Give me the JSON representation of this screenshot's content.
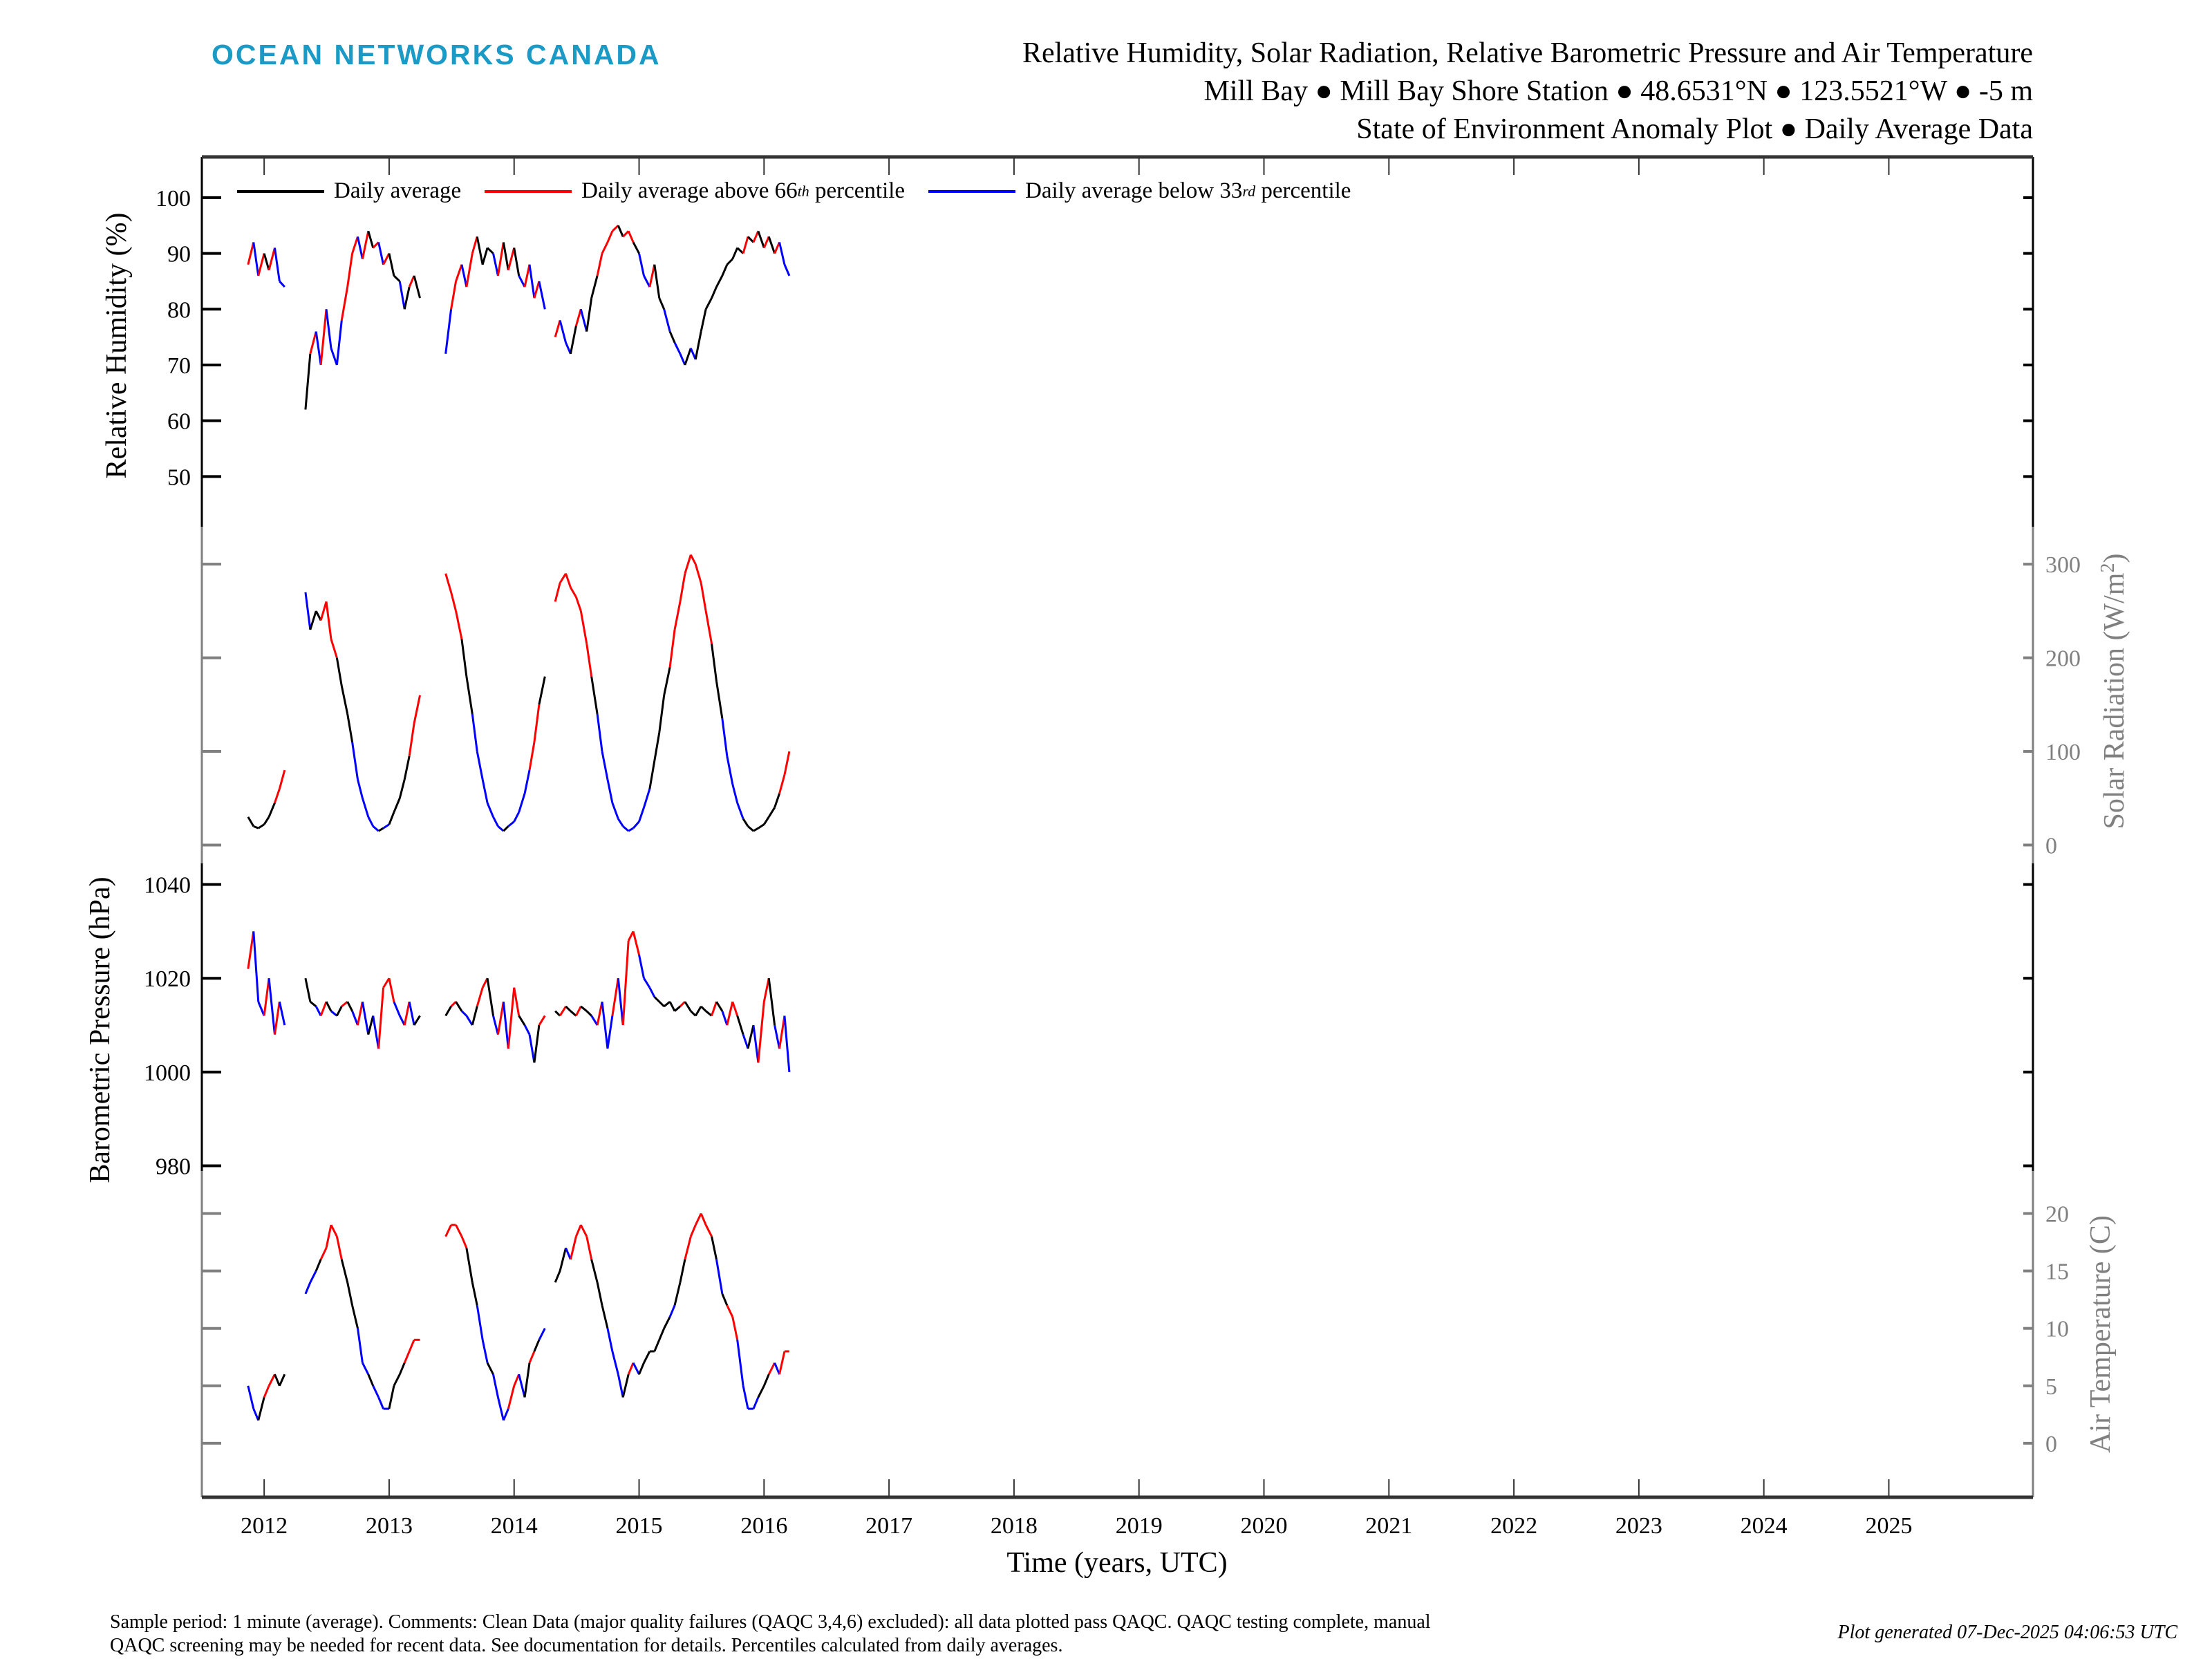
{
  "header": {
    "logo": "OCEAN NETWORKS CANADA",
    "title_lines": [
      "Relative Humidity, Solar Radiation, Relative Barometric Pressure and Air Temperature",
      "Mill Bay ● Mill Bay Shore Station ● 48.6531°N ● 123.5521°W ● -5 m",
      "State of Environment Anomaly Plot ● Daily Average Data"
    ]
  },
  "legend": [
    {
      "label": "Daily average",
      "sup": "",
      "suffix": "",
      "color": "#000000"
    },
    {
      "label": "Daily average above 66",
      "sup": "th",
      "suffix": " percentile",
      "color": "#ff0000"
    },
    {
      "label": "Daily average below 33",
      "sup": "rd",
      "suffix": " percentile",
      "color": "#0000ff"
    }
  ],
  "colors": {
    "normal": "#000000",
    "above": "#ff0000",
    "below": "#0000ff",
    "axis_black": "#000000",
    "axis_gray": "#808080",
    "logo": "#1b9ac6"
  },
  "chart_data": {
    "type": "line",
    "xlabel": "Time (years, UTC)",
    "xticks": [
      "2012",
      "2013",
      "2014",
      "2015",
      "2016",
      "2017",
      "2018",
      "2019",
      "2020",
      "2021",
      "2022",
      "2023",
      "2024",
      "2025"
    ],
    "xlim": [
      "2011-07-03",
      "2026-02-26"
    ],
    "grid": false,
    "legend_position": "top-left",
    "x": [
      "2011-11-15",
      "2011-12-01",
      "2011-12-15",
      "2012-01-01",
      "2012-01-15",
      "2012-02-01",
      "2012-02-15",
      "2012-03-01",
      "2012-03-15",
      "2012-04-01",
      "2012-04-15",
      "2012-05-01",
      "2012-05-15",
      "2012-06-01",
      "2012-06-15",
      "2012-07-01",
      "2012-07-15",
      "2012-08-01",
      "2012-08-15",
      "2012-09-01",
      "2012-09-15",
      "2012-10-01",
      "2012-10-15",
      "2012-11-01",
      "2012-11-15",
      "2012-12-01",
      "2012-12-15",
      "2013-01-01",
      "2013-01-15",
      "2013-02-01",
      "2013-02-15",
      "2013-03-01",
      "2013-03-15",
      "2013-04-01",
      "2013-04-15",
      "2013-05-01",
      "2013-05-15",
      "2013-06-01",
      "2013-06-15",
      "2013-07-01",
      "2013-07-15",
      "2013-08-01",
      "2013-08-15",
      "2013-09-01",
      "2013-09-15",
      "2013-10-01",
      "2013-10-15",
      "2013-11-01",
      "2013-11-15",
      "2013-12-01",
      "2013-12-15",
      "2014-01-01",
      "2014-01-15",
      "2014-02-01",
      "2014-02-15",
      "2014-03-01",
      "2014-03-15",
      "2014-04-01",
      "2014-04-15",
      "2014-05-01",
      "2014-05-15",
      "2014-06-01",
      "2014-06-15",
      "2014-07-01",
      "2014-07-15",
      "2014-08-01",
      "2014-08-15",
      "2014-09-01",
      "2014-09-15",
      "2014-10-01",
      "2014-10-15",
      "2014-11-01",
      "2014-11-15",
      "2014-12-01",
      "2014-12-15",
      "2015-01-01",
      "2015-01-15",
      "2015-02-01",
      "2015-02-15",
      "2015-03-01",
      "2015-03-15",
      "2015-04-01",
      "2015-04-15",
      "2015-05-01",
      "2015-05-15",
      "2015-06-01",
      "2015-06-15",
      "2015-07-01",
      "2015-07-15",
      "2015-08-01",
      "2015-08-15",
      "2015-09-01",
      "2015-09-15",
      "2015-10-01",
      "2015-10-15",
      "2015-11-01",
      "2015-11-15",
      "2015-12-01",
      "2015-12-15",
      "2016-01-01",
      "2016-01-15",
      "2016-02-01",
      "2016-02-15",
      "2016-03-01",
      "2016-03-15"
    ],
    "panels": [
      {
        "ylabel": "Relative Humidity (%)",
        "label_side": "left",
        "axis_color": "#000000",
        "yticks": [
          "50",
          "60",
          "70",
          "80",
          "90",
          "100"
        ],
        "ylim": [
          41,
          107.3
        ],
        "values": [
          88,
          92,
          86,
          90,
          87,
          91,
          85,
          84,
          null,
          null,
          null,
          62,
          72,
          76,
          70,
          80,
          73,
          70,
          78,
          84,
          90,
          93,
          89,
          94,
          91,
          92,
          88,
          90,
          86,
          85,
          80,
          84,
          86,
          82,
          null,
          null,
          null,
          null,
          72,
          80,
          85,
          88,
          84,
          90,
          93,
          88,
          91,
          90,
          86,
          92,
          87,
          91,
          86,
          84,
          88,
          82,
          85,
          80,
          null,
          75,
          78,
          74,
          72,
          77,
          80,
          76,
          82,
          86,
          90,
          92,
          94,
          95,
          93,
          94,
          92,
          90,
          86,
          84,
          88,
          82,
          80,
          76,
          74,
          72,
          70,
          73,
          71,
          76,
          80,
          82,
          84,
          86,
          88,
          89,
          91,
          90,
          93,
          92,
          94,
          91,
          93,
          90,
          92,
          88,
          86
        ]
      },
      {
        "ylabel": "Solar Radiation (W/m",
        "ylabel_sup": "2",
        "ylabel_suffix": ")",
        "label_side": "right",
        "axis_color": "#808080",
        "yticks": [
          "0",
          "100",
          "200",
          "300"
        ],
        "ylim": [
          -19.6,
          340
        ],
        "values": [
          30,
          20,
          18,
          22,
          30,
          45,
          60,
          80,
          null,
          null,
          null,
          270,
          230,
          250,
          240,
          260,
          220,
          200,
          170,
          140,
          110,
          70,
          50,
          30,
          20,
          15,
          18,
          22,
          35,
          50,
          70,
          95,
          130,
          160,
          null,
          null,
          null,
          null,
          290,
          270,
          250,
          220,
          180,
          140,
          100,
          70,
          45,
          30,
          20,
          15,
          20,
          25,
          35,
          55,
          80,
          110,
          150,
          180,
          null,
          260,
          280,
          290,
          275,
          265,
          250,
          215,
          180,
          140,
          100,
          70,
          45,
          28,
          20,
          15,
          18,
          25,
          40,
          60,
          90,
          120,
          160,
          190,
          230,
          260,
          290,
          310,
          300,
          280,
          250,
          215,
          175,
          135,
          95,
          65,
          45,
          28,
          20,
          15,
          18,
          22,
          30,
          40,
          55,
          75,
          100
        ]
      },
      {
        "ylabel": "Barometric Pressure (hPa)",
        "label_side": "left",
        "axis_color": "#000000",
        "yticks": [
          "980",
          "1000",
          "1020",
          "1040"
        ],
        "ylim": [
          978.9,
          1044.5
        ],
        "values": [
          1022,
          1030,
          1015,
          1012,
          1020,
          1008,
          1015,
          1010,
          null,
          null,
          null,
          1020,
          1015,
          1014,
          1012,
          1015,
          1013,
          1012,
          1014,
          1015,
          1013,
          1010,
          1015,
          1008,
          1012,
          1005,
          1018,
          1020,
          1015,
          1012,
          1010,
          1015,
          1010,
          1012,
          null,
          null,
          null,
          null,
          1012,
          1014,
          1015,
          1013,
          1012,
          1010,
          1014,
          1018,
          1020,
          1012,
          1008,
          1015,
          1005,
          1018,
          1012,
          1010,
          1008,
          1002,
          1010,
          1012,
          null,
          1013,
          1012,
          1014,
          1013,
          1012,
          1014,
          1013,
          1012,
          1010,
          1015,
          1005,
          1012,
          1020,
          1010,
          1028,
          1030,
          1025,
          1020,
          1018,
          1016,
          1015,
          1014,
          1015,
          1013,
          1014,
          1015,
          1013,
          1012,
          1014,
          1013,
          1012,
          1015,
          1013,
          1010,
          1015,
          1012,
          1008,
          1005,
          1010,
          1002,
          1015,
          1020,
          1010,
          1005,
          1012,
          1000
        ]
      },
      {
        "ylabel": "Air Temperature (C)",
        "label_side": "right",
        "axis_color": "#808080",
        "yticks": [
          "0",
          "5",
          "10",
          "15",
          "20"
        ],
        "ylim": [
          -4.7,
          23.7
        ],
        "values": [
          5,
          3,
          2,
          4,
          5,
          6,
          5,
          6,
          null,
          null,
          null,
          13,
          14,
          15,
          16,
          17,
          19,
          18,
          16,
          14,
          12,
          10,
          7,
          6,
          5,
          4,
          3,
          3,
          5,
          6,
          7,
          8,
          9,
          9,
          null,
          null,
          null,
          null,
          18,
          19,
          19,
          18,
          17,
          14,
          12,
          9,
          7,
          6,
          4,
          2,
          3,
          5,
          6,
          4,
          7,
          8,
          9,
          10,
          null,
          14,
          15,
          17,
          16,
          18,
          19,
          18,
          16,
          14,
          12,
          10,
          8,
          6,
          4,
          6,
          7,
          6,
          7,
          8,
          8,
          9,
          10,
          11,
          12,
          14,
          16,
          18,
          19,
          20,
          19,
          18,
          16,
          13,
          12,
          11,
          9,
          5,
          3,
          3,
          4,
          5,
          6,
          7,
          6,
          8,
          8
        ]
      }
    ]
  },
  "footer": {
    "note_lines": [
      "Sample period: 1 minute (average). Comments: Clean Data (major quality failures (QAQC 3,4,6) excluded): all data plotted pass QAQC. QAQC testing complete, manual",
      "QAQC screening may be needed for recent data. See documentation for details. Percentiles calculated from daily averages."
    ],
    "generated": "Plot generated 07-Dec-2025 04:06:53 UTC"
  }
}
